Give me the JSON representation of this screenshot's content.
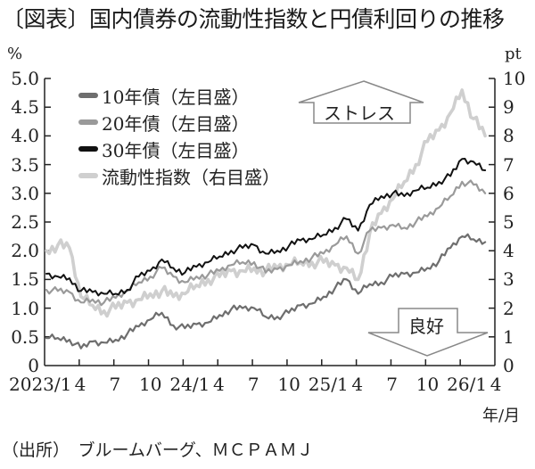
{
  "title": "〔図表〕国内債券の流動性指数と円債利回りの推移",
  "left_unit": "%",
  "right_unit": "pt",
  "x_unit": "年/月",
  "source": "（出所）　ブルームバーグ、ＭＣＰＡＭＪ",
  "annotations": {
    "stress": "ストレス",
    "good": "良好"
  },
  "legend": [
    {
      "label": "10年債（左目盛）",
      "color": "#6e6e6e"
    },
    {
      "label": "20年債（左目盛）",
      "color": "#9a9a9a"
    },
    {
      "label": "30年債（左目盛）",
      "color": "#111111"
    },
    {
      "label": "流動性指数（右目盛）",
      "color": "#cfcfcf"
    }
  ],
  "left_ticks": [
    "5.0",
    "4.5",
    "4.0",
    "3.5",
    "3.0",
    "2.5",
    "2.0",
    "1.5",
    "1.0",
    "0.5",
    "0"
  ],
  "right_ticks": [
    "10",
    "9",
    "8",
    "7",
    "6",
    "5",
    "4",
    "3",
    "2",
    "1",
    "0"
  ],
  "x_ticks": [
    "2023/1",
    "4",
    "7",
    "10",
    "24/1",
    "4",
    "7",
    "10",
    "25/1",
    "4",
    "7",
    "10",
    "26/1",
    "4"
  ],
  "chart_data": {
    "type": "line",
    "title": "国内債券の流動性指数と円債利回りの推移",
    "xlabel": "年/月",
    "ylabel": "%",
    "ylabel_right": "pt",
    "ylim": [
      0,
      5.0
    ],
    "ylim_right": [
      0,
      10
    ],
    "grid": false,
    "legend_position": "upper-left",
    "x": [
      "2023/1",
      "2023/2",
      "2023/3",
      "2023/4",
      "2023/5",
      "2023/6",
      "2023/7",
      "2023/8",
      "2023/9",
      "2023/10",
      "2023/11",
      "2023/12",
      "2024/1",
      "2024/2",
      "2024/3",
      "2024/4",
      "2024/5",
      "2024/6",
      "2024/7",
      "2024/8",
      "2024/9",
      "2024/10",
      "2024/11",
      "2024/12",
      "2025/1",
      "2025/2",
      "2025/3",
      "2025/4",
      "2025/5",
      "2025/6",
      "2025/7",
      "2025/8",
      "2025/9",
      "2025/10",
      "2025/11",
      "2025/12",
      "2026/1",
      "2026/2",
      "2026/3"
    ],
    "series": [
      {
        "name": "10年債",
        "axis": "left",
        "color": "#6e6e6e",
        "values": [
          0.48,
          0.48,
          0.45,
          0.3,
          0.42,
          0.4,
          0.45,
          0.55,
          0.68,
          0.8,
          0.92,
          0.7,
          0.65,
          0.72,
          0.75,
          0.88,
          0.98,
          1.0,
          1.0,
          0.85,
          0.85,
          0.92,
          1.05,
          1.08,
          1.2,
          1.35,
          1.5,
          1.25,
          1.42,
          1.45,
          1.55,
          1.6,
          1.62,
          1.7,
          1.82,
          2.05,
          2.25,
          2.2,
          2.15
        ]
      },
      {
        "name": "20年債",
        "axis": "left",
        "color": "#9a9a9a",
        "values": [
          1.32,
          1.3,
          1.28,
          1.1,
          1.15,
          1.1,
          1.18,
          1.3,
          1.45,
          1.55,
          1.7,
          1.55,
          1.45,
          1.55,
          1.58,
          1.65,
          1.75,
          1.8,
          1.8,
          1.62,
          1.68,
          1.75,
          1.82,
          1.88,
          1.95,
          2.1,
          2.25,
          1.95,
          2.35,
          2.4,
          2.45,
          2.4,
          2.5,
          2.6,
          2.75,
          2.95,
          3.2,
          3.15,
          3.0
        ]
      },
      {
        "name": "30年債",
        "axis": "left",
        "color": "#111111",
        "values": [
          1.6,
          1.55,
          1.52,
          1.3,
          1.28,
          1.25,
          1.25,
          1.32,
          1.55,
          1.65,
          1.85,
          1.7,
          1.62,
          1.72,
          1.8,
          1.9,
          2.0,
          2.05,
          2.1,
          1.95,
          2.0,
          2.08,
          2.18,
          2.2,
          2.28,
          2.4,
          2.55,
          2.35,
          2.8,
          2.95,
          3.0,
          2.95,
          3.05,
          3.1,
          3.2,
          3.3,
          3.6,
          3.55,
          3.4
        ]
      },
      {
        "name": "流動性指数",
        "axis": "right",
        "color": "#cfcfcf",
        "values": [
          4.0,
          4.2,
          4.1,
          2.4,
          2.1,
          1.9,
          2.0,
          2.2,
          2.3,
          2.5,
          2.6,
          2.4,
          2.5,
          2.8,
          3.0,
          3.1,
          3.3,
          3.3,
          3.4,
          3.3,
          3.4,
          3.5,
          3.6,
          3.6,
          3.6,
          3.5,
          3.4,
          3.0,
          4.6,
          5.3,
          5.8,
          6.4,
          7.0,
          7.8,
          8.2,
          8.8,
          9.6,
          8.6,
          8.0
        ]
      }
    ]
  }
}
